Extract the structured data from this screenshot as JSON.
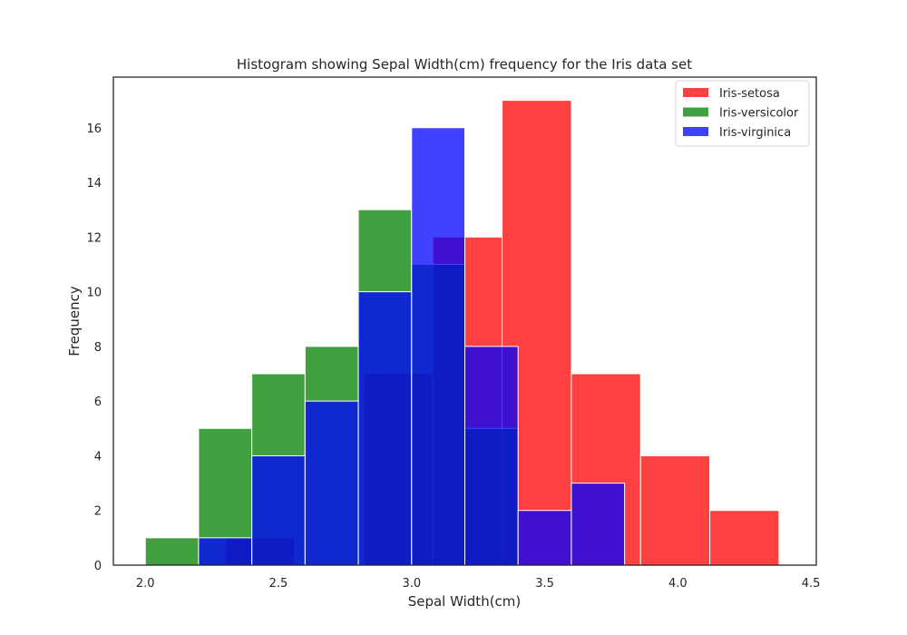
{
  "chart_data": {
    "type": "histogram",
    "title": "Histogram showing Sepal Width(cm)  frequency for the Iris data set",
    "xlabel": "Sepal Width(cm)",
    "ylabel": "Frequency",
    "xlim": [
      1.88,
      4.52
    ],
    "ylim": [
      0,
      17.85
    ],
    "xticks": [
      "2.0",
      "2.5",
      "3.0",
      "3.5",
      "4.0",
      "4.5"
    ],
    "yticks": [
      "0",
      "2",
      "4",
      "6",
      "8",
      "10",
      "12",
      "14",
      "16"
    ],
    "grid": false,
    "legend_position": "top-right",
    "series": [
      {
        "name": "Iris-setosa",
        "color": "#ff0000",
        "bins": [
          {
            "x0": 2.3,
            "x1": 2.56,
            "count": 1
          },
          {
            "x0": 2.56,
            "x1": 2.82,
            "count": 0
          },
          {
            "x0": 2.82,
            "x1": 3.08,
            "count": 7
          },
          {
            "x0": 3.08,
            "x1": 3.34,
            "count": 12
          },
          {
            "x0": 3.34,
            "x1": 3.6,
            "count": 17
          },
          {
            "x0": 3.6,
            "x1": 3.86,
            "count": 7
          },
          {
            "x0": 3.86,
            "x1": 4.12,
            "count": 4
          },
          {
            "x0": 4.12,
            "x1": 4.38,
            "count": 2
          }
        ]
      },
      {
        "name": "Iris-versicolor",
        "color": "#008000",
        "bins": [
          {
            "x0": 2.0,
            "x1": 2.2,
            "count": 1
          },
          {
            "x0": 2.2,
            "x1": 2.4,
            "count": 5
          },
          {
            "x0": 2.4,
            "x1": 2.6,
            "count": 7
          },
          {
            "x0": 2.6,
            "x1": 2.8,
            "count": 8
          },
          {
            "x0": 2.8,
            "x1": 3.0,
            "count": 13
          },
          {
            "x0": 3.0,
            "x1": 3.2,
            "count": 11
          },
          {
            "x0": 3.2,
            "x1": 3.4,
            "count": 5
          }
        ]
      },
      {
        "name": "Iris-virginica",
        "color": "#0000ff",
        "bins": [
          {
            "x0": 2.2,
            "x1": 2.4,
            "count": 1
          },
          {
            "x0": 2.4,
            "x1": 2.6,
            "count": 4
          },
          {
            "x0": 2.6,
            "x1": 2.8,
            "count": 6
          },
          {
            "x0": 2.8,
            "x1": 3.0,
            "count": 10
          },
          {
            "x0": 3.0,
            "x1": 3.2,
            "count": 16
          },
          {
            "x0": 3.2,
            "x1": 3.4,
            "count": 8
          },
          {
            "x0": 3.4,
            "x1": 3.6,
            "count": 2
          },
          {
            "x0": 3.6,
            "x1": 3.8,
            "count": 3
          }
        ]
      }
    ]
  }
}
